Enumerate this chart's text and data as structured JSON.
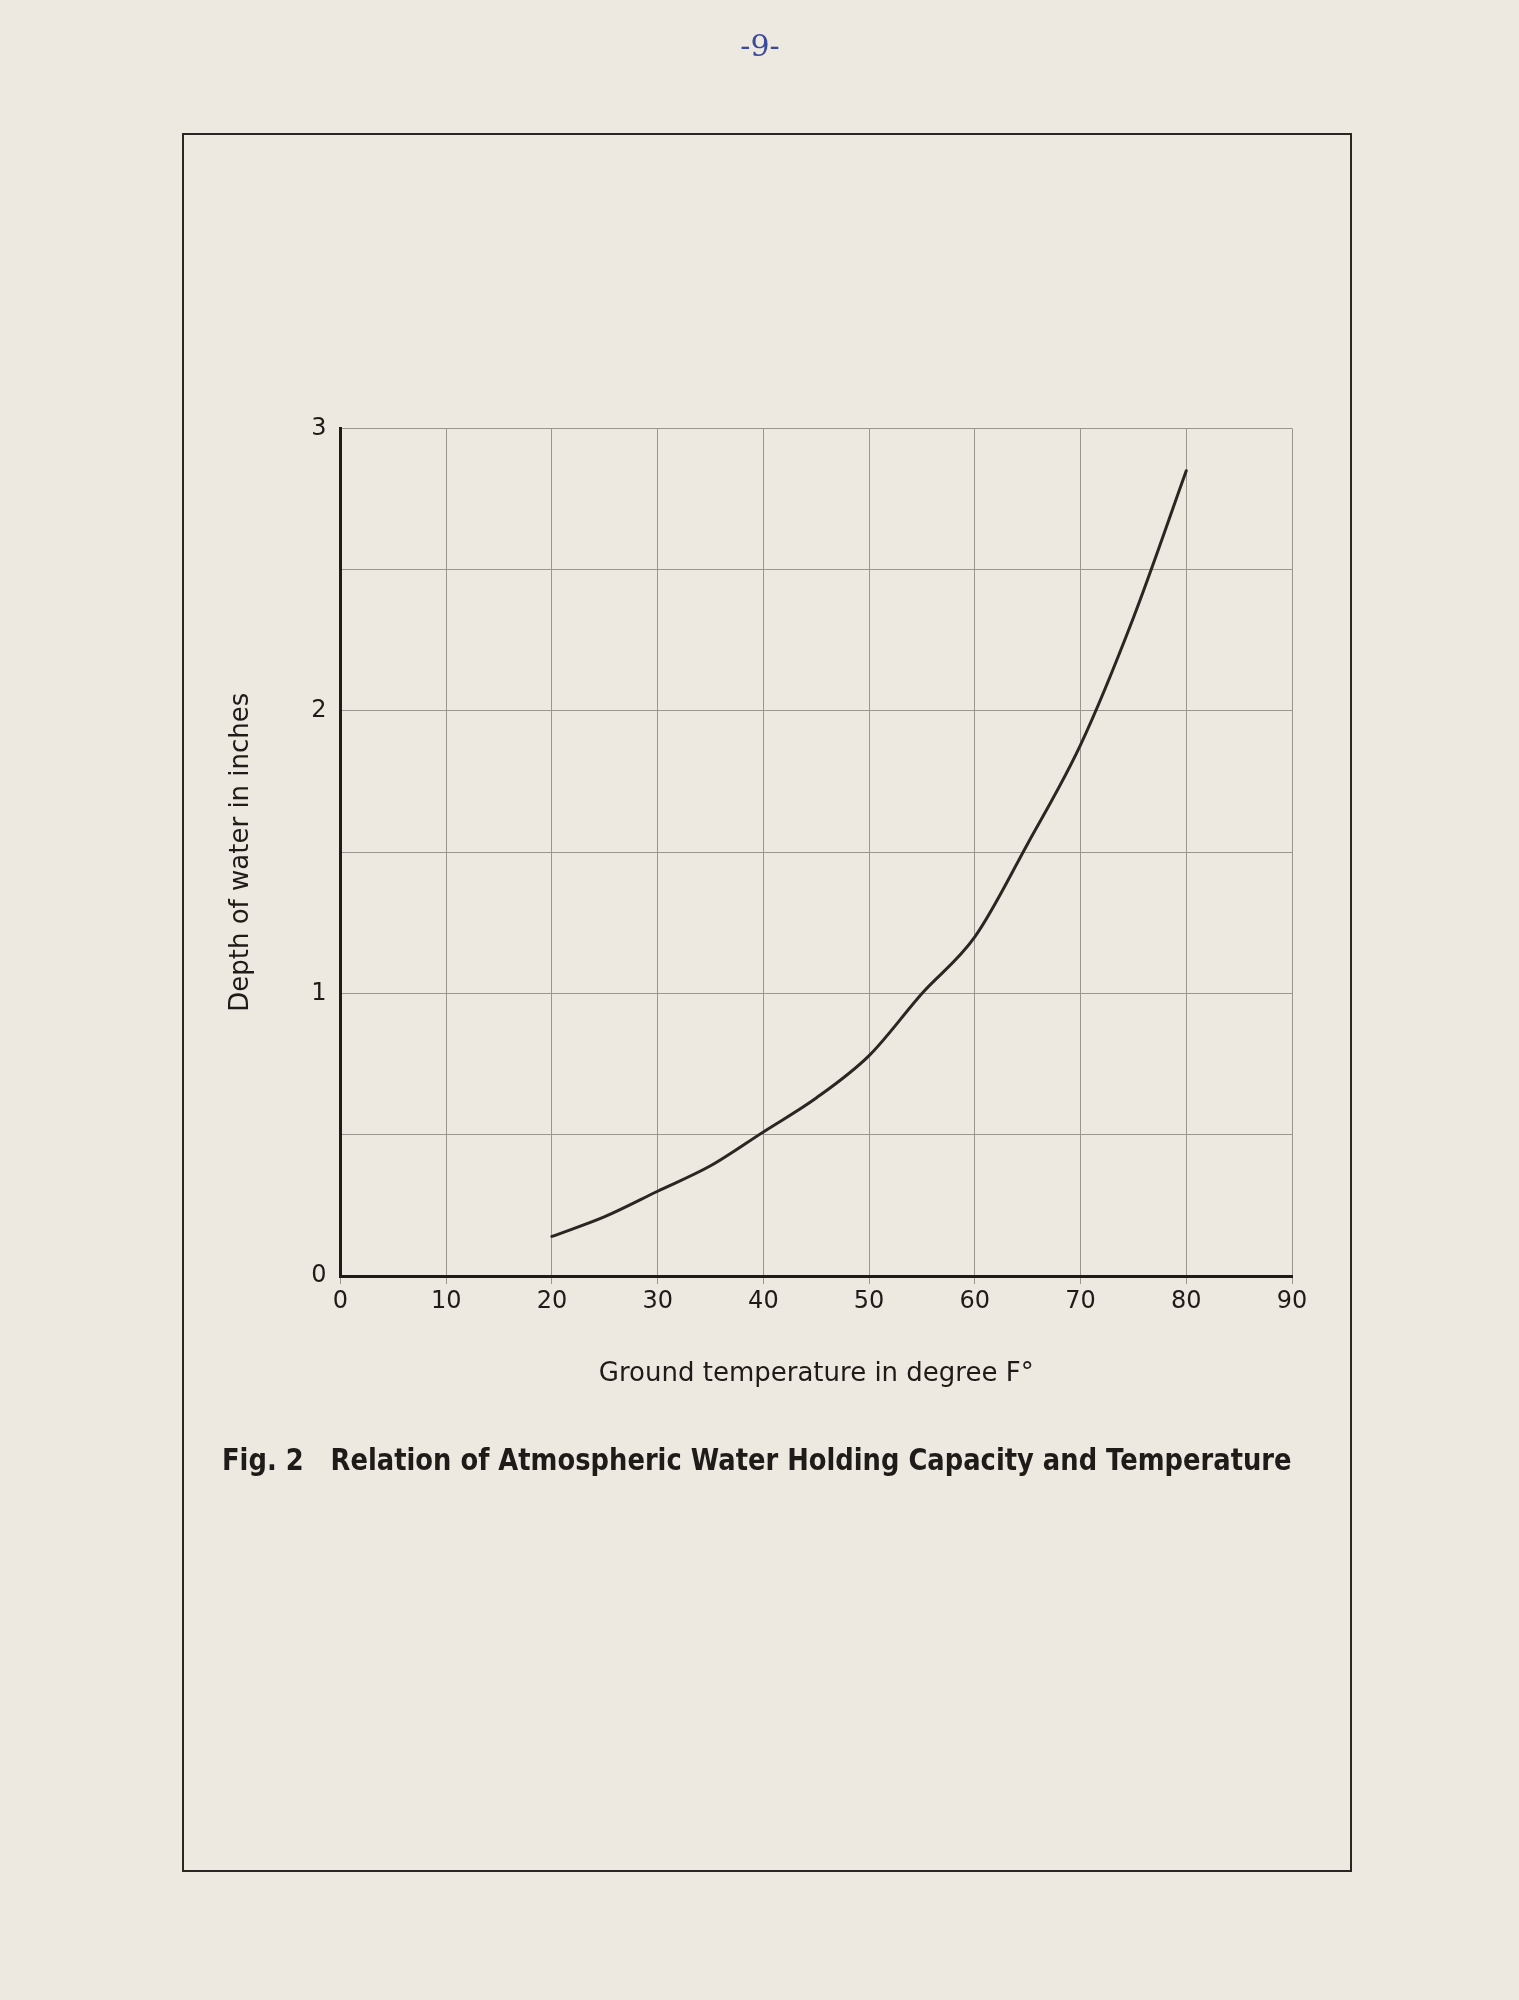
{
  "chart_data": {
    "type": "line",
    "title": "Fig. 2   Relation of Atmospheric Water Holding Capacity and Temperature",
    "xlabel": "Ground temperature in degree F°",
    "ylabel": "Depth of water in inches",
    "annotations": [
      "-9-"
    ],
    "x": [
      20,
      25,
      30,
      35,
      40,
      45,
      50,
      55,
      60,
      65,
      70,
      75,
      80
    ],
    "series": [
      {
        "color": "#2a2622",
        "values": [
          0.14,
          0.21,
          0.3,
          0.39,
          0.51,
          0.63,
          0.78,
          1.0,
          1.2,
          1.53,
          1.88,
          2.33,
          2.85
        ]
      }
    ],
    "xlim": [
      0,
      90
    ],
    "xticks": [
      0,
      10,
      20,
      30,
      40,
      50,
      60,
      70,
      80,
      90
    ],
    "ylim": [
      0,
      3
    ],
    "yticks": [
      0,
      {
        "value": 0.5,
        "label": null
      },
      1,
      {
        "value": 1.5,
        "label": null
      },
      2,
      {
        "value": 2.5,
        "label": null
      },
      3
    ],
    "grid": true,
    "legend": false,
    "marker": "none",
    "line_style": "solid"
  }
}
